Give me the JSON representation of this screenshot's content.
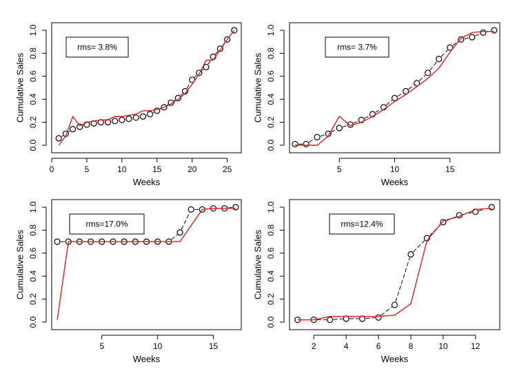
{
  "chart_data": [
    {
      "type": "line",
      "xlabel": "Weeks",
      "ylabel": "Cumulative Sales",
      "annotation": "rms= 3.8%",
      "xlim": [
        0,
        27
      ],
      "ylim": [
        0,
        1.0
      ],
      "xticks": [
        0,
        5,
        10,
        15,
        20,
        25
      ],
      "yticks": [
        0.0,
        0.2,
        0.4,
        0.6,
        0.8,
        1.0
      ],
      "x": [
        1,
        2,
        3,
        4,
        5,
        6,
        7,
        8,
        9,
        10,
        11,
        12,
        13,
        14,
        15,
        16,
        17,
        18,
        19,
        20,
        21,
        22,
        23,
        24,
        25,
        26
      ],
      "series": [
        {
          "style": "points-dashed",
          "color": "#000000",
          "values": [
            0.06,
            0.1,
            0.14,
            0.16,
            0.18,
            0.19,
            0.2,
            0.2,
            0.21,
            0.22,
            0.23,
            0.24,
            0.25,
            0.27,
            0.3,
            0.33,
            0.37,
            0.41,
            0.47,
            0.57,
            0.63,
            0.68,
            0.77,
            0.84,
            0.92,
            1.0
          ]
        },
        {
          "style": "line",
          "color": "#e41a1c",
          "values": [
            0.0,
            0.08,
            0.25,
            0.17,
            0.2,
            0.21,
            0.22,
            0.22,
            0.25,
            0.25,
            0.26,
            0.27,
            0.3,
            0.3,
            0.31,
            0.33,
            0.36,
            0.4,
            0.45,
            0.53,
            0.62,
            0.74,
            0.74,
            0.83,
            0.92,
            1.0
          ]
        }
      ]
    },
    {
      "type": "line",
      "xlabel": "Weeks",
      "ylabel": "Cumulative Sales",
      "annotation": "rms= 3.7%",
      "xlim": [
        0.5,
        19.5
      ],
      "ylim": [
        0,
        1.0
      ],
      "xticks": [
        5,
        10,
        15
      ],
      "yticks": [
        0.0,
        0.2,
        0.4,
        0.6,
        0.8,
        1.0
      ],
      "x": [
        1,
        2,
        3,
        4,
        5,
        6,
        7,
        8,
        9,
        10,
        11,
        12,
        13,
        14,
        15,
        16,
        17,
        18,
        19
      ],
      "series": [
        {
          "style": "points-dashed",
          "color": "#000000",
          "values": [
            0.01,
            0.01,
            0.07,
            0.1,
            0.15,
            0.18,
            0.22,
            0.27,
            0.33,
            0.41,
            0.47,
            0.54,
            0.63,
            0.75,
            0.85,
            0.92,
            0.94,
            0.98,
            1.0
          ]
        },
        {
          "style": "line",
          "color": "#e41a1c",
          "values": [
            0.0,
            0.0,
            0.0,
            0.08,
            0.25,
            0.17,
            0.2,
            0.25,
            0.31,
            0.38,
            0.44,
            0.51,
            0.58,
            0.67,
            0.81,
            0.93,
            0.98,
            0.99,
            0.99
          ]
        }
      ]
    },
    {
      "type": "line",
      "xlabel": "Weeks",
      "ylabel": "Cumulative Sales",
      "annotation": "rms=17.0%",
      "xlim": [
        0.5,
        17.5
      ],
      "ylim": [
        0,
        1.0
      ],
      "xticks": [
        5,
        10,
        15
      ],
      "yticks": [
        0.0,
        0.2,
        0.4,
        0.6,
        0.8,
        1.0
      ],
      "x": [
        1,
        2,
        3,
        4,
        5,
        6,
        7,
        8,
        9,
        10,
        11,
        12,
        13,
        14,
        15,
        16,
        17
      ],
      "series": [
        {
          "style": "points-dashed",
          "color": "#000000",
          "values": [
            0.7,
            0.7,
            0.7,
            0.7,
            0.7,
            0.7,
            0.7,
            0.7,
            0.7,
            0.7,
            0.7,
            0.78,
            0.98,
            0.98,
            0.99,
            0.99,
            1.0
          ]
        },
        {
          "style": "line",
          "color": "#e41a1c",
          "values": [
            0.02,
            0.7,
            0.7,
            0.7,
            0.7,
            0.7,
            0.7,
            0.7,
            0.7,
            0.7,
            0.7,
            0.7,
            0.84,
            0.98,
            0.99,
            0.99,
            0.99
          ]
        }
      ]
    },
    {
      "type": "line",
      "xlabel": "Weeks",
      "ylabel": "Cumulative Sales",
      "annotation": "rms=12.4%",
      "xlim": [
        0.5,
        13.5
      ],
      "ylim": [
        0,
        1.0
      ],
      "xticks": [
        2,
        4,
        6,
        8,
        10,
        12
      ],
      "yticks": [
        0.0,
        0.2,
        0.4,
        0.6,
        0.8,
        1.0
      ],
      "x": [
        1,
        2,
        3,
        4,
        5,
        6,
        7,
        8,
        9,
        10,
        11,
        12,
        13
      ],
      "series": [
        {
          "style": "points-dashed",
          "color": "#000000",
          "values": [
            0.02,
            0.02,
            0.02,
            0.03,
            0.03,
            0.04,
            0.15,
            0.59,
            0.73,
            0.87,
            0.93,
            0.96,
            1.0
          ]
        },
        {
          "style": "line",
          "color": "#e41a1c",
          "values": [
            0.02,
            0.02,
            0.05,
            0.05,
            0.05,
            0.05,
            0.06,
            0.16,
            0.71,
            0.88,
            0.92,
            0.98,
            0.99
          ]
        }
      ]
    }
  ]
}
